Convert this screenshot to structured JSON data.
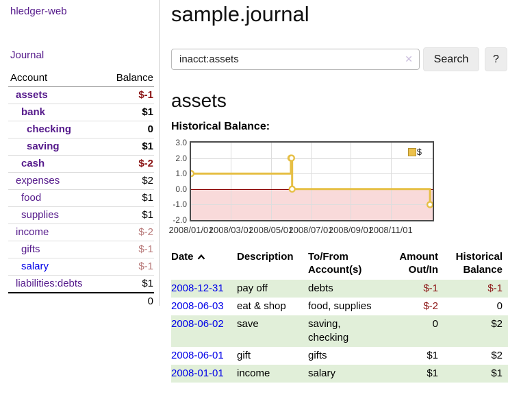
{
  "sidebar": {
    "brand": "hledger-web",
    "nav_journal": "Journal",
    "accounts": {
      "col_account": "Account",
      "col_balance": "Balance",
      "rows": [
        {
          "name": "assets",
          "balance": "$-1",
          "depth": 1,
          "bold": true,
          "name_tone": "purple",
          "balance_tone": "neg-strong"
        },
        {
          "name": "bank",
          "balance": "$1",
          "depth": 2,
          "bold": true,
          "name_tone": "purple",
          "balance_tone": "plain"
        },
        {
          "name": "checking",
          "balance": "0",
          "depth": 3,
          "bold": true,
          "name_tone": "purple",
          "balance_tone": "plain"
        },
        {
          "name": "saving",
          "balance": "$1",
          "depth": 3,
          "bold": true,
          "name_tone": "purple",
          "balance_tone": "plain"
        },
        {
          "name": "cash",
          "balance": "$-2",
          "depth": 2,
          "bold": true,
          "name_tone": "purple",
          "balance_tone": "neg-strong"
        },
        {
          "name": "expenses",
          "balance": "$2",
          "depth": 1,
          "bold": false,
          "name_tone": "purple",
          "balance_tone": "plain"
        },
        {
          "name": "food",
          "balance": "$1",
          "depth": 2,
          "bold": false,
          "name_tone": "purple",
          "balance_tone": "plain"
        },
        {
          "name": "supplies",
          "balance": "$1",
          "depth": 2,
          "bold": false,
          "name_tone": "purple",
          "balance_tone": "plain"
        },
        {
          "name": "income",
          "balance": "$-2",
          "depth": 1,
          "bold": false,
          "name_tone": "purple",
          "balance_tone": "neg-soft"
        },
        {
          "name": "gifts",
          "balance": "$-1",
          "depth": 2,
          "bold": false,
          "name_tone": "purple",
          "balance_tone": "neg-soft"
        },
        {
          "name": "salary",
          "balance": "$-1",
          "depth": 2,
          "bold": false,
          "name_tone": "blue",
          "balance_tone": "neg-soft"
        },
        {
          "name": "liabilities:debts",
          "balance": "$1",
          "depth": 1,
          "bold": false,
          "name_tone": "purple",
          "balance_tone": "plain"
        }
      ],
      "total": "0"
    }
  },
  "main": {
    "title": "sample.journal",
    "search": {
      "value": "inacct:assets",
      "clear_icon": "✕",
      "search_label": "Search",
      "help_label": "?"
    },
    "account_heading": "assets",
    "chart_title": "Historical Balance:",
    "register": {
      "headers": {
        "date": "Date",
        "description": "Description",
        "accounts": "To/From Account(s)",
        "amount": "Amount Out/In",
        "balance": "Historical Balance"
      },
      "rows": [
        {
          "date": "2008-12-31",
          "description": "pay off",
          "accounts": "debts",
          "amount": "$-1",
          "balance": "$-1",
          "amount_neg": true,
          "balance_neg": true,
          "striped": true
        },
        {
          "date": "2008-06-03",
          "description": "eat & shop",
          "accounts": "food, supplies",
          "amount": "$-2",
          "balance": "0",
          "amount_neg": true,
          "balance_neg": false,
          "striped": false
        },
        {
          "date": "2008-06-02",
          "description": "save",
          "accounts": "saving, checking",
          "amount": "0",
          "balance": "$2",
          "amount_neg": false,
          "balance_neg": false,
          "striped": true
        },
        {
          "date": "2008-06-01",
          "description": "gift",
          "accounts": "gifts",
          "amount": "$1",
          "balance": "$2",
          "amount_neg": false,
          "balance_neg": false,
          "striped": false
        },
        {
          "date": "2008-01-01",
          "description": "income",
          "accounts": "salary",
          "amount": "$1",
          "balance": "$1",
          "amount_neg": false,
          "balance_neg": false,
          "striped": true
        }
      ]
    }
  },
  "chart_data": {
    "type": "line",
    "step": true,
    "title": "Historical Balance",
    "series": [
      {
        "name": "$",
        "points": [
          [
            "2008-01-01",
            1
          ],
          [
            "2008-06-01",
            2
          ],
          [
            "2008-06-02",
            2
          ],
          [
            "2008-06-03",
            0
          ],
          [
            "2008-12-31",
            -1
          ]
        ]
      }
    ],
    "ylim": [
      -2,
      3
    ],
    "yticks": [
      "3.0",
      "2.0",
      "1.0",
      "0.0",
      "-1.0",
      "-2.0"
    ],
    "xticks": [
      {
        "label": "2008/01/01",
        "month_index": 0
      },
      {
        "label": "2008/03/01",
        "month_index": 2
      },
      {
        "label": "2008/05/01",
        "month_index": 4
      },
      {
        "label": "2008/07/01",
        "month_index": 6
      },
      {
        "label": "2008/09/01",
        "month_index": 8
      },
      {
        "label": "2008/11/01",
        "month_index": 10
      }
    ],
    "x_months_span": 12.1,
    "legend": {
      "label": "$",
      "position": "top-right"
    },
    "colors": {
      "line": "#e6bf45",
      "marker_fill": "#ffffff",
      "negative_region": "#f9dada",
      "zero_line": "#8b0000",
      "grid": "#dddddd",
      "border": "#4a4a4a"
    }
  }
}
